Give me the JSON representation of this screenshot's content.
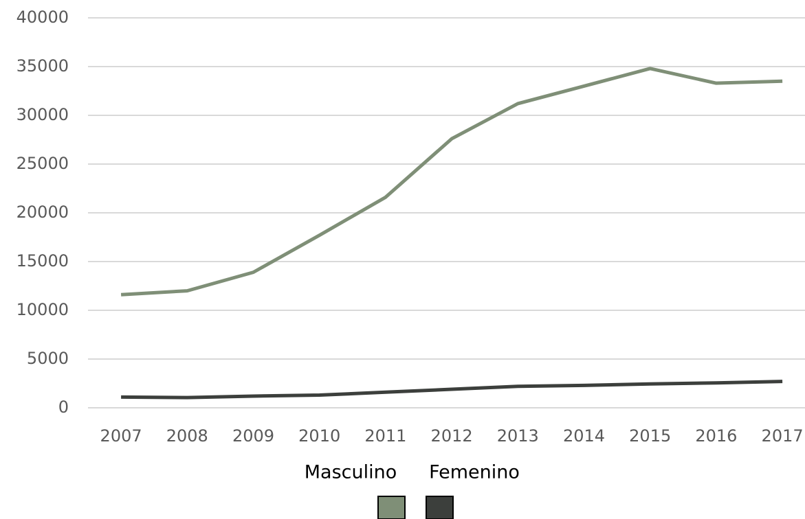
{
  "chart_data": {
    "type": "line",
    "categories": [
      "2007",
      "2008",
      "2009",
      "2010",
      "2011",
      "2012",
      "2013",
      "2014",
      "2015",
      "2016",
      "2017"
    ],
    "series": [
      {
        "name": "Masculino",
        "color": "#7f8f77",
        "values": [
          11600,
          12000,
          13900,
          17700,
          21600,
          27600,
          31200,
          33000,
          34800,
          33300,
          33500
        ]
      },
      {
        "name": "Femenino",
        "color": "#3c3f3c",
        "values": [
          1100,
          1050,
          1200,
          1300,
          1600,
          1900,
          2200,
          2300,
          2450,
          2550,
          2700
        ]
      }
    ],
    "ylim": [
      0,
      40000
    ],
    "yticks": [
      0,
      5000,
      10000,
      15000,
      20000,
      25000,
      30000,
      35000,
      40000
    ],
    "grid": true
  }
}
